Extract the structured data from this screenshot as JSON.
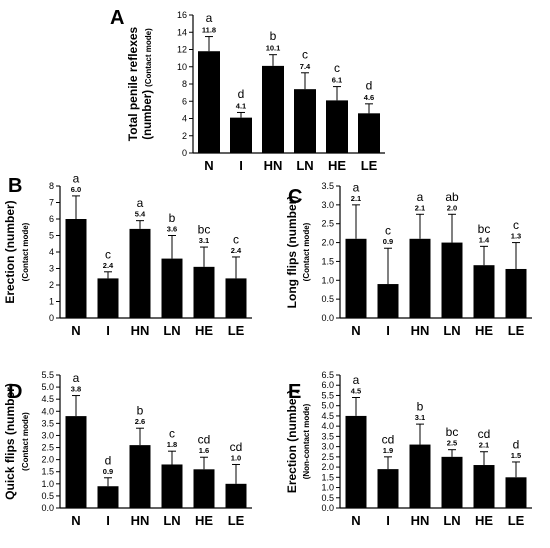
{
  "chart_data": [
    {
      "panel": "A",
      "type": "bar",
      "categories": [
        "N",
        "I",
        "HN",
        "LN",
        "HE",
        "LE"
      ],
      "values": [
        11.8,
        4.1,
        10.1,
        7.4,
        6.1,
        4.6
      ],
      "value_labels": [
        "11.8",
        "4.1",
        "10.1",
        "7.4",
        "6.1",
        "4.6"
      ],
      "errors": [
        1.7,
        0.6,
        1.3,
        1.9,
        1.6,
        1.1
      ],
      "letters": [
        "a",
        "d",
        "b",
        "c",
        "c",
        "d"
      ],
      "ylabel_main": "Total penile reflexes",
      "ylabel_unit": "(number)",
      "ylabel_mode": "(Contact mode)",
      "ylim": [
        0,
        16
      ],
      "yticks": [
        "0",
        "2",
        "4",
        "6",
        "8",
        "10",
        "12",
        "14",
        "16"
      ],
      "color": "#000000"
    },
    {
      "panel": "B",
      "type": "bar",
      "categories": [
        "N",
        "I",
        "HN",
        "LN",
        "HE",
        "LE"
      ],
      "values": [
        6.0,
        2.4,
        5.4,
        3.6,
        3.1,
        2.4
      ],
      "value_labels": [
        "6.0",
        "2.4",
        "5.4",
        "3.6",
        "3.1",
        "2.4"
      ],
      "errors": [
        1.4,
        0.4,
        0.5,
        1.4,
        1.2,
        1.3
      ],
      "letters": [
        "a",
        "c",
        "a",
        "b",
        "bc",
        "c"
      ],
      "ylabel_main": "Erection (number)",
      "ylabel_mode": "(Contact mode)",
      "ylim": [
        0,
        8
      ],
      "yticks": [
        "0",
        "1",
        "2",
        "3",
        "4",
        "5",
        "6",
        "7",
        "8"
      ],
      "color": "#000000"
    },
    {
      "panel": "C",
      "type": "bar",
      "categories": [
        "N",
        "I",
        "HN",
        "LN",
        "HE",
        "LE"
      ],
      "values": [
        2.1,
        0.9,
        2.1,
        2.0,
        1.4,
        1.3
      ],
      "value_labels": [
        "2.1",
        "0.9",
        "2.1",
        "2.0",
        "1.4",
        "1.3"
      ],
      "errors": [
        0.9,
        0.95,
        0.65,
        0.75,
        0.5,
        0.7
      ],
      "letters": [
        "a",
        "c",
        "a",
        "ab",
        "bc",
        "c"
      ],
      "ylabel_main": "Long flips (number)",
      "ylabel_mode": "(Contact mode)",
      "ylim": [
        0,
        3.5
      ],
      "yticks": [
        "0.0",
        "0.5",
        "1.0",
        "1.5",
        "2.0",
        "2.5",
        "3.0",
        "3.5"
      ],
      "color": "#000000"
    },
    {
      "panel": "D",
      "type": "bar",
      "categories": [
        "N",
        "I",
        "HN",
        "LN",
        "HE",
        "LE"
      ],
      "values": [
        3.8,
        0.9,
        2.6,
        1.8,
        1.6,
        1.0
      ],
      "value_labels": [
        "3.8",
        "0.9",
        "2.6",
        "1.8",
        "1.6",
        "1.0"
      ],
      "errors": [
        0.85,
        0.35,
        0.7,
        0.55,
        0.5,
        0.8
      ],
      "letters": [
        "a",
        "d",
        "b",
        "c",
        "cd",
        "cd"
      ],
      "ylabel_main": "Quick flips (number)",
      "ylabel_mode": "(Contact mode)",
      "ylim": [
        0,
        5.5
      ],
      "yticks": [
        "0.0",
        "0.5",
        "1.0",
        "1.5",
        "2.0",
        "2.5",
        "3.0",
        "3.5",
        "4.0",
        "4.5",
        "5.0",
        "5.5"
      ],
      "color": "#000000"
    },
    {
      "panel": "E",
      "type": "bar",
      "categories": [
        "N",
        "I",
        "HN",
        "LN",
        "HE",
        "LE"
      ],
      "values": [
        4.5,
        1.9,
        3.1,
        2.5,
        2.1,
        1.5
      ],
      "value_labels": [
        "4.5",
        "1.9",
        "3.1",
        "2.5",
        "2.1",
        "1.5"
      ],
      "errors": [
        0.9,
        0.6,
        1.0,
        0.35,
        0.65,
        0.75
      ],
      "letters": [
        "a",
        "cd",
        "b",
        "bc",
        "cd",
        "d"
      ],
      "ylabel_main": "Erection (number)",
      "ylabel_mode": "(Non-contact mode)",
      "ylim": [
        0,
        6.5
      ],
      "yticks": [
        "0.0",
        "0.5",
        "1.0",
        "1.5",
        "2.0",
        "2.5",
        "3.0",
        "3.5",
        "4.0",
        "4.5",
        "5.0",
        "5.5",
        "6.0",
        "6.5"
      ],
      "color": "#000000"
    }
  ]
}
